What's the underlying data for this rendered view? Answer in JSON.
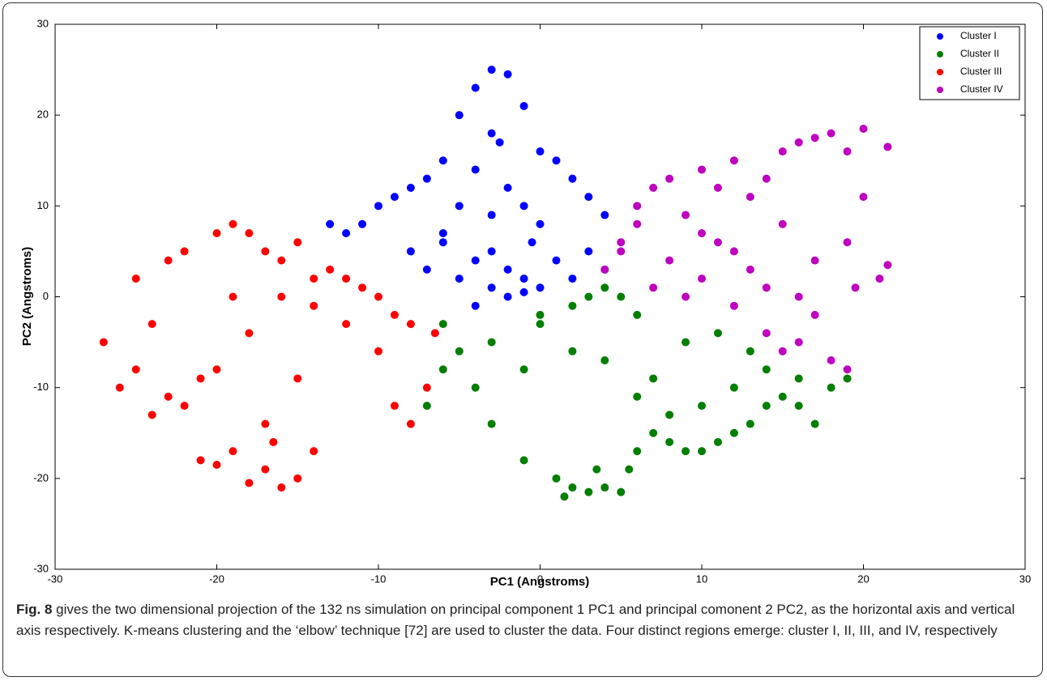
{
  "chart_data": {
    "type": "scatter",
    "xlabel": "PC1 (Angstroms)",
    "ylabel": "PC2 (Angstroms)",
    "xlim": [
      -30,
      30
    ],
    "ylim": [
      -30,
      30
    ],
    "xticks": [
      -30,
      -20,
      -10,
      0,
      10,
      20,
      30
    ],
    "yticks": [
      -30,
      -20,
      -10,
      0,
      10,
      20,
      30
    ],
    "legend": "upper right",
    "series": [
      {
        "name": "Cluster I",
        "color": "#0000ff",
        "x": [
          -3,
          -2,
          -4,
          -5,
          -1,
          0,
          1,
          2,
          3,
          4,
          -6,
          -7,
          -8,
          -9,
          -10,
          -11,
          -12,
          -13,
          -3,
          -2.5,
          -4,
          -2,
          -1,
          0,
          -5,
          -6,
          -3,
          -2,
          -4,
          -1,
          1,
          3,
          -8,
          -7,
          -5,
          -3,
          -2,
          0,
          2,
          4,
          -6,
          -4,
          -1,
          -3,
          -0.5
        ],
        "values": [
          25,
          24.5,
          23,
          20,
          21,
          16,
          15,
          13,
          11,
          9,
          15,
          13,
          12,
          11,
          10,
          8,
          7,
          8,
          18,
          17,
          14,
          12,
          10,
          8,
          10,
          7,
          5,
          3,
          4,
          2,
          4,
          5,
          5,
          3,
          2,
          1,
          0,
          1,
          2,
          3,
          6,
          -1,
          0.5,
          9,
          6
        ]
      },
      {
        "name": "Cluster II",
        "color": "#007f00",
        "x": [
          -6,
          -5,
          -4,
          -3,
          -7,
          -6,
          -1,
          0,
          1,
          2,
          3,
          4,
          5,
          6,
          7,
          8,
          9,
          10,
          11,
          12,
          13,
          14,
          15,
          16,
          17,
          18,
          19,
          2,
          3,
          4,
          5,
          6,
          1.5,
          3.5,
          5.5,
          8,
          10,
          12,
          14,
          16,
          -1,
          -3,
          0,
          2,
          4,
          7,
          9,
          11,
          13,
          6
        ],
        "values": [
          -3,
          -6,
          -10,
          -14,
          -12,
          -8,
          -18,
          -2,
          -20,
          -21,
          -21.5,
          -21,
          -21.5,
          -17,
          -15,
          -16,
          -17,
          -17,
          -16,
          -15,
          -14,
          -12,
          -11,
          -9,
          -14,
          -10,
          -9,
          -1,
          0,
          1,
          0,
          -2,
          -22,
          -19,
          -19,
          -13,
          -12,
          -10,
          -8,
          -12,
          -8,
          -5,
          -3,
          -6,
          -7,
          -9,
          -5,
          -4,
          -6,
          -11
        ]
      },
      {
        "name": "Cluster III",
        "color": "#ff0000",
        "x": [
          -27,
          -26,
          -25,
          -24,
          -23,
          -22,
          -21,
          -20,
          -19,
          -18,
          -17,
          -16,
          -15,
          -14,
          -13,
          -12,
          -11,
          -10,
          -9,
          -8,
          -7,
          -6.5,
          -21,
          -20,
          -19,
          -18,
          -17,
          -16,
          -15,
          -14,
          -17,
          -16.5,
          -18,
          -15,
          -25,
          -23,
          -22,
          -20,
          -14,
          -12,
          -10,
          -9,
          -8,
          -24,
          -19,
          -16
        ],
        "values": [
          -5,
          -10,
          -8,
          -13,
          -11,
          -12,
          -9,
          -8,
          8,
          7,
          5,
          4,
          6,
          -1,
          3,
          2,
          1,
          -6,
          -12,
          -14,
          -10,
          -4,
          -18,
          -18.5,
          -17,
          -20.5,
          -19,
          -21,
          -20,
          -17,
          -14,
          -16,
          -4,
          -9,
          2,
          4,
          5,
          7,
          2,
          -3,
          0,
          -2,
          -3,
          -3,
          0,
          0
        ]
      },
      {
        "name": "Cluster IV",
        "color": "#bf00bf",
        "x": [
          4,
          5,
          6,
          7,
          8,
          9,
          10,
          11,
          12,
          13,
          14,
          15,
          16,
          17,
          18,
          19,
          20,
          21,
          21.5,
          20,
          19,
          17,
          16,
          15,
          14,
          12,
          10,
          8,
          6,
          5,
          7,
          9,
          11,
          13,
          15,
          17,
          18,
          19,
          16,
          14,
          12,
          10,
          19.5,
          21.5
        ],
        "values": [
          3,
          6,
          10,
          12,
          13,
          9,
          14,
          12,
          15,
          11,
          13,
          16,
          17,
          17.5,
          18,
          16,
          18.5,
          2,
          16.5,
          11,
          6,
          -2,
          -5,
          -6,
          -4,
          -1,
          2,
          4,
          8,
          5,
          1,
          0,
          6,
          3,
          8,
          4,
          -7,
          -8,
          0,
          1,
          5,
          7,
          1,
          3.5
        ]
      }
    ]
  },
  "caption": {
    "label": "Fig. 8",
    "text": "gives the two dimensional projection of the 132 ns simulation on principal component 1 PC1 and principal comonent 2 PC2, as the horizontal axis and vertical axis respectively. K-means clustering and the ‘elbow’ technique [72] are used to cluster the data. Four distinct regions emerge: cluster I, II, III, and IV, respectively"
  }
}
